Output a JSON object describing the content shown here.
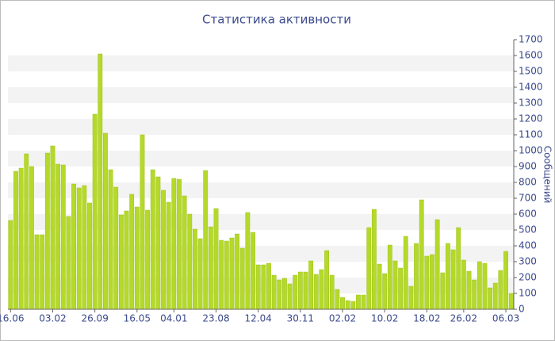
{
  "chart_data": {
    "type": "bar",
    "title": "Статистика активности",
    "y_label": "Сообщений",
    "categories": [
      "16.06",
      null,
      null,
      null,
      null,
      null,
      null,
      null,
      "03.02",
      null,
      null,
      null,
      null,
      null,
      null,
      null,
      "26.09",
      null,
      null,
      null,
      null,
      null,
      null,
      null,
      "16.05",
      null,
      null,
      null,
      null,
      null,
      null,
      "04.01",
      null,
      null,
      null,
      null,
      null,
      null,
      null,
      "23.08",
      null,
      null,
      null,
      null,
      null,
      null,
      null,
      "12.04",
      null,
      null,
      null,
      null,
      null,
      null,
      null,
      "30.11",
      null,
      null,
      null,
      null,
      null,
      null,
      null,
      "02.02",
      null,
      null,
      null,
      null,
      null,
      null,
      null,
      "10.02",
      null,
      null,
      null,
      null,
      null,
      null,
      null,
      "18.02",
      null,
      null,
      null,
      null,
      null,
      null,
      "26.02",
      null,
      null,
      null,
      null,
      null,
      null,
      null,
      "06.03",
      null
    ],
    "values": [
      560,
      870,
      890,
      980,
      900,
      470,
      470,
      985,
      1030,
      915,
      910,
      585,
      790,
      765,
      780,
      670,
      1230,
      1610,
      1110,
      880,
      770,
      595,
      620,
      725,
      645,
      1100,
      625,
      880,
      835,
      750,
      675,
      825,
      820,
      715,
      600,
      505,
      445,
      875,
      520,
      635,
      435,
      430,
      450,
      475,
      385,
      610,
      485,
      280,
      280,
      290,
      215,
      185,
      195,
      160,
      215,
      235,
      235,
      305,
      220,
      250,
      370,
      215,
      125,
      75,
      55,
      50,
      90,
      90,
      515,
      630,
      285,
      225,
      405,
      305,
      260,
      460,
      145,
      415,
      690,
      335,
      345,
      565,
      230,
      415,
      375,
      515,
      310,
      240,
      185,
      300,
      290,
      135,
      165,
      245,
      365,
      100
    ],
    "color": "#b5d92a",
    "ylim": [
      0,
      1700
    ],
    "yticks": [
      0,
      100,
      200,
      300,
      400,
      500,
      600,
      700,
      800,
      900,
      1000,
      1100,
      1200,
      1300,
      1400,
      1500,
      1600,
      1700
    ],
    "grid": true
  }
}
